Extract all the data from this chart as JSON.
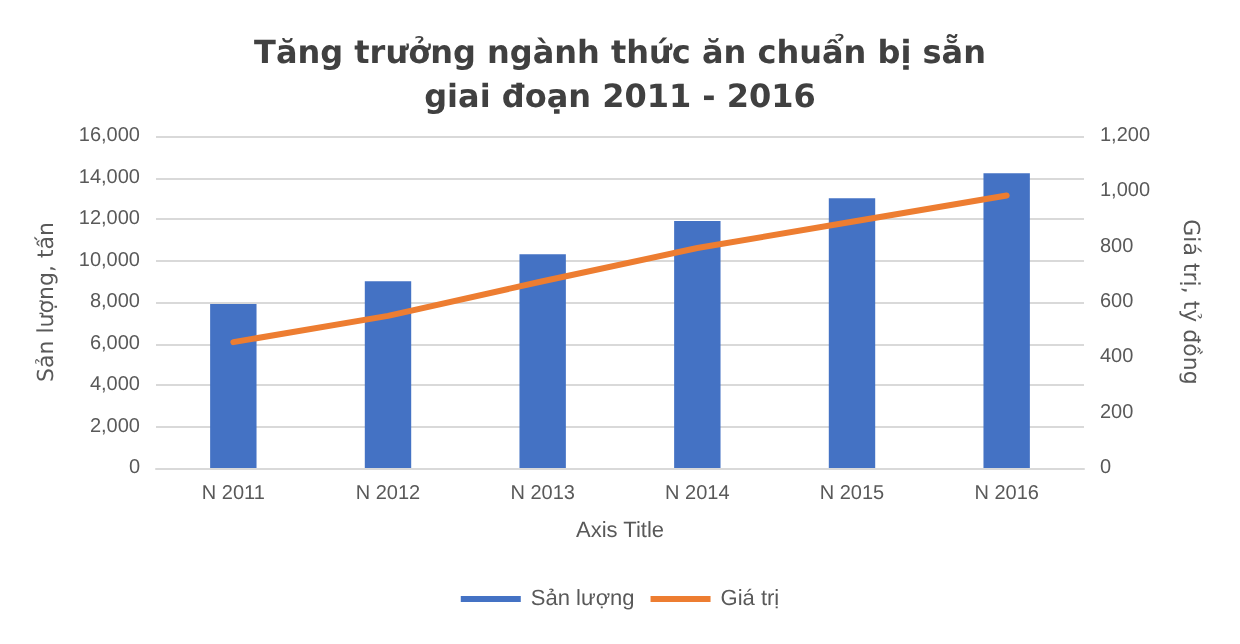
{
  "chart_data": {
    "type": "bar",
    "title": "Tăng trưởng ngành thức ăn chuẩn bị sẵn\ngiai đoạn 2011 - 2016",
    "xlabel": "Axis Title",
    "ylabel": "Sản lượng, tấn",
    "y2label": "Giá trị, tỷ đồng",
    "categories": [
      "N 2011",
      "N 2012",
      "N 2013",
      "N 2014",
      "N 2015",
      "N 2016"
    ],
    "series": [
      {
        "name": "Sản lượng",
        "color": "#4472c4",
        "values": [
          7900,
          9000,
          10300,
          11900,
          13000,
          14200
        ]
      },
      {
        "name": "Giá trị",
        "type": "line",
        "axis": "y2",
        "color": "#ed7d31",
        "marker": "none",
        "values": [
          455,
          550,
          675,
          795,
          890,
          985
        ]
      }
    ],
    "ylim": [
      0,
      16000
    ],
    "yticks": [
      {
        "value": 0,
        "label": "0"
      },
      {
        "value": 2000,
        "label": "2,000"
      },
      {
        "value": 4000,
        "label": "4,000"
      },
      {
        "value": 6000,
        "label": "6,000"
      },
      {
        "value": 8000,
        "label": "8,000"
      },
      {
        "value": 10000,
        "label": "10,000"
      },
      {
        "value": 12000,
        "label": "12,000"
      },
      {
        "value": 14000,
        "label": "14,000"
      },
      {
        "value": 16000,
        "label": "16,000"
      }
    ],
    "y2lim": [
      0,
      1200
    ],
    "y2ticks": [
      {
        "value": 0,
        "label": "0"
      },
      {
        "value": 200,
        "label": "200"
      },
      {
        "value": 400,
        "label": "400"
      },
      {
        "value": 600,
        "label": "600"
      },
      {
        "value": 800,
        "label": "800"
      },
      {
        "value": 1000,
        "label": "1,000"
      },
      {
        "value": 1200,
        "label": "1,200"
      }
    ],
    "grid": "y",
    "legend": "bottom"
  }
}
